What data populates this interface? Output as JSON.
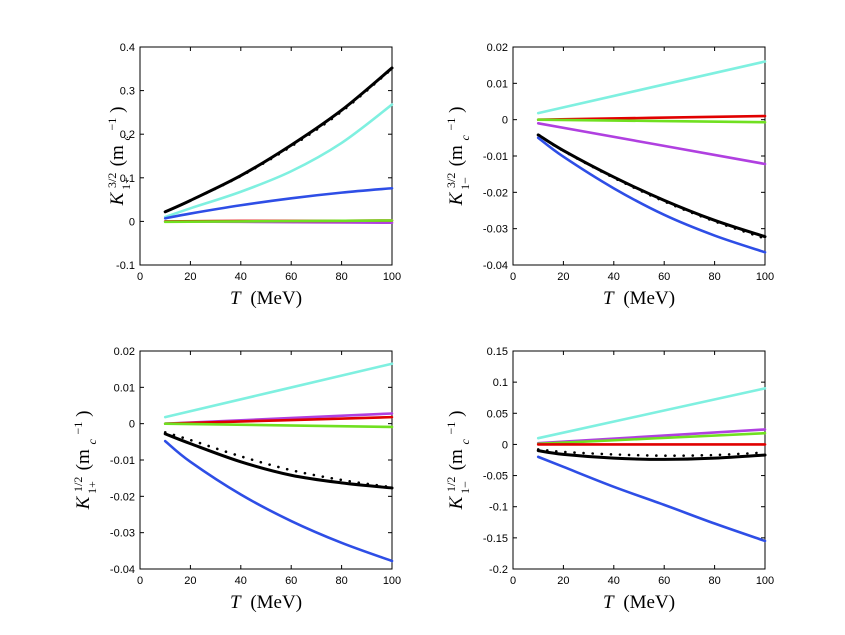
{
  "chart_data": [
    {
      "type": "line",
      "xlabel": "T",
      "xlabel_unit": "(MeV)",
      "ylabel_base": "K",
      "ylabel_sup": "3/2",
      "ylabel_sub": "1+",
      "ylabel_unit_base": "(m",
      "ylabel_unit_sub": "c",
      "ylabel_unit_sup": "−1",
      "ylabel_unit_close": ")",
      "xlim": [
        0,
        100
      ],
      "ylim": [
        -0.1,
        0.4
      ],
      "xticks": [
        "0",
        "20",
        "40",
        "60",
        "80",
        "100"
      ],
      "yticks": [
        "-0.1",
        "0",
        "0.1",
        "0.2",
        "0.3",
        "0.4"
      ],
      "series": [
        {
          "color": "#000000",
          "x": [
            10,
            20,
            40,
            60,
            80,
            100
          ],
          "values": [
            0.022,
            0.048,
            0.105,
            0.175,
            0.255,
            0.352
          ]
        },
        {
          "color": "#000000",
          "style": "dotted",
          "x": [
            10,
            20,
            40,
            60,
            80,
            100
          ],
          "values": [
            0.022,
            0.048,
            0.104,
            0.172,
            0.252,
            0.35
          ]
        },
        {
          "color": "#7ff0e0",
          "x": [
            10,
            20,
            40,
            60,
            80,
            100
          ],
          "values": [
            0.01,
            0.03,
            0.068,
            0.115,
            0.18,
            0.268
          ]
        },
        {
          "color": "#2e4ee6",
          "x": [
            10,
            20,
            40,
            60,
            80,
            100
          ],
          "values": [
            0.007,
            0.018,
            0.037,
            0.053,
            0.066,
            0.076
          ]
        },
        {
          "color": "#b040e0",
          "x": [
            10,
            40,
            70,
            100
          ],
          "values": [
            0.0,
            -0.001,
            -0.002,
            -0.003
          ]
        },
        {
          "color": "#e00000",
          "x": [
            10,
            40,
            70,
            100
          ],
          "values": [
            0.0,
            0.001,
            0.001,
            0.002
          ]
        },
        {
          "color": "#70e020",
          "x": [
            10,
            40,
            70,
            100
          ],
          "values": [
            -0.001,
            0.0,
            0.001,
            0.002
          ]
        }
      ]
    },
    {
      "type": "line",
      "xlabel": "T",
      "xlabel_unit": "(MeV)",
      "ylabel_base": "K",
      "ylabel_sup": "3/2",
      "ylabel_sub": "1−",
      "ylabel_unit_base": "(m",
      "ylabel_unit_sub": "c",
      "ylabel_unit_sup": "−1",
      "ylabel_unit_close": ")",
      "xlim": [
        0,
        100
      ],
      "ylim": [
        -0.04,
        0.02
      ],
      "xticks": [
        "0",
        "20",
        "40",
        "60",
        "80",
        "100"
      ],
      "yticks": [
        "-0.04",
        "-0.03",
        "-0.02",
        "-0.01",
        "0",
        "0.01",
        "0.02"
      ],
      "series": [
        {
          "color": "#7ff0e0",
          "x": [
            10,
            100
          ],
          "values": [
            0.0018,
            0.016
          ]
        },
        {
          "color": "#e00000",
          "x": [
            10,
            100
          ],
          "values": [
            0.0,
            0.001
          ]
        },
        {
          "color": "#70e020",
          "x": [
            10,
            100
          ],
          "values": [
            0.0,
            -0.0007
          ]
        },
        {
          "color": "#b040e0",
          "x": [
            10,
            100
          ],
          "values": [
            -0.001,
            -0.0122
          ]
        },
        {
          "color": "#000000",
          "x": [
            10,
            20,
            40,
            60,
            80,
            100
          ],
          "values": [
            -0.0042,
            -0.0085,
            -0.0158,
            -0.0222,
            -0.0277,
            -0.0322
          ]
        },
        {
          "color": "#000000",
          "style": "dotted",
          "x": [
            10,
            20,
            40,
            60,
            80,
            100
          ],
          "values": [
            -0.0042,
            -0.0086,
            -0.016,
            -0.0225,
            -0.028,
            -0.0327
          ]
        },
        {
          "color": "#2e4ee6",
          "x": [
            10,
            20,
            40,
            60,
            80,
            100
          ],
          "values": [
            -0.005,
            -0.0102,
            -0.0189,
            -0.0262,
            -0.0319,
            -0.0365
          ]
        }
      ]
    },
    {
      "type": "line",
      "xlabel": "T",
      "xlabel_unit": "(MeV)",
      "ylabel_base": "K",
      "ylabel_sup": "1/2",
      "ylabel_sub": "1+",
      "ylabel_unit_base": "(m",
      "ylabel_unit_sub": "c",
      "ylabel_unit_sup": "−1",
      "ylabel_unit_close": ")",
      "xlim": [
        0,
        100
      ],
      "ylim": [
        -0.04,
        0.02
      ],
      "xticks": [
        "0",
        "20",
        "40",
        "60",
        "80",
        "100"
      ],
      "yticks": [
        "-0.04",
        "-0.03",
        "-0.02",
        "-0.01",
        "0",
        "0.01",
        "0.02"
      ],
      "series": [
        {
          "color": "#7ff0e0",
          "x": [
            10,
            100
          ],
          "values": [
            0.0018,
            0.0165
          ]
        },
        {
          "color": "#b040e0",
          "x": [
            10,
            100
          ],
          "values": [
            0.0,
            0.0028
          ]
        },
        {
          "color": "#e00000",
          "x": [
            10,
            100
          ],
          "values": [
            0.0,
            0.0018
          ]
        },
        {
          "color": "#70e020",
          "x": [
            10,
            100
          ],
          "values": [
            0.0,
            -0.0009
          ]
        },
        {
          "color": "#000000",
          "x": [
            10,
            20,
            40,
            60,
            80,
            100
          ],
          "values": [
            -0.0028,
            -0.0055,
            -0.0105,
            -0.0142,
            -0.0163,
            -0.0177
          ]
        },
        {
          "color": "#000000",
          "style": "dotted",
          "x": [
            10,
            20,
            40,
            60,
            80,
            100
          ],
          "values": [
            -0.0024,
            -0.0045,
            -0.009,
            -0.0128,
            -0.0155,
            -0.0175
          ]
        },
        {
          "color": "#2e4ee6",
          "x": [
            10,
            20,
            40,
            60,
            80,
            100
          ],
          "values": [
            -0.0048,
            -0.0105,
            -0.0195,
            -0.0268,
            -0.0328,
            -0.0378
          ]
        }
      ]
    },
    {
      "type": "line",
      "xlabel": "T",
      "xlabel_unit": "(MeV)",
      "ylabel_base": "K",
      "ylabel_sup": "1/2",
      "ylabel_sub": "1−",
      "ylabel_unit_base": "(m",
      "ylabel_unit_sub": "c",
      "ylabel_unit_sup": "−1",
      "ylabel_unit_close": ")",
      "xlim": [
        0,
        100
      ],
      "ylim": [
        -0.2,
        0.15
      ],
      "xticks": [
        "0",
        "20",
        "40",
        "60",
        "80",
        "100"
      ],
      "yticks": [
        "-0.2",
        "-0.15",
        "-0.1",
        "-0.05",
        "0",
        "0.05",
        "0.1",
        "0.15"
      ],
      "series": [
        {
          "color": "#7ff0e0",
          "x": [
            10,
            100
          ],
          "values": [
            0.01,
            0.09
          ]
        },
        {
          "color": "#b040e0",
          "x": [
            10,
            100
          ],
          "values": [
            0.002,
            0.024
          ]
        },
        {
          "color": "#70e020",
          "x": [
            10,
            100
          ],
          "values": [
            0.001,
            0.018
          ]
        },
        {
          "color": "#e00000",
          "x": [
            10,
            100
          ],
          "values": [
            0.0,
            0.0
          ]
        },
        {
          "color": "#000000",
          "x": [
            10,
            20,
            40,
            60,
            80,
            100
          ],
          "values": [
            -0.01,
            -0.016,
            -0.022,
            -0.024,
            -0.022,
            -0.017
          ]
        },
        {
          "color": "#000000",
          "style": "dotted",
          "x": [
            10,
            20,
            40,
            60,
            80,
            100
          ],
          "values": [
            -0.008,
            -0.012,
            -0.016,
            -0.018,
            -0.017,
            -0.013
          ]
        },
        {
          "color": "#2e4ee6",
          "x": [
            10,
            20,
            40,
            60,
            80,
            100
          ],
          "values": [
            -0.02,
            -0.036,
            -0.068,
            -0.097,
            -0.127,
            -0.155
          ]
        }
      ]
    }
  ]
}
